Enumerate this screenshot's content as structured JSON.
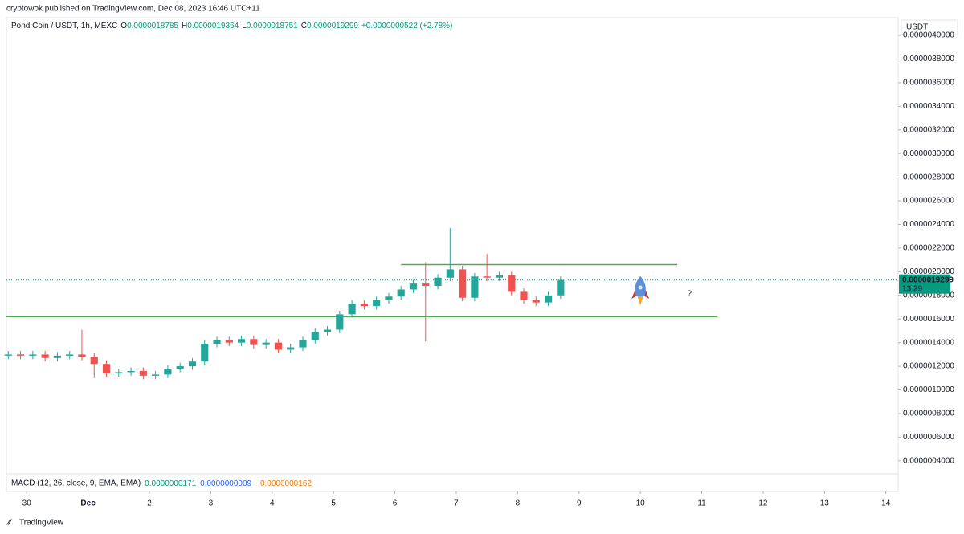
{
  "header": {
    "publisher": "cryptowok published on TradingView.com, Dec 08, 2023 16:46 UTC+11",
    "symbol": "Pond Coin / USDT, 1h, MEXC",
    "ohlc": [
      {
        "key": "O",
        "value": "0.0000018785"
      },
      {
        "key": "H",
        "value": "0.0000019364"
      },
      {
        "key": "L",
        "value": "0.0000018751"
      },
      {
        "key": "C",
        "value": "0.0000019299"
      }
    ],
    "change": "+0.0000000522 (+2.78%)",
    "currency": "USDT"
  },
  "macd": {
    "label": "MACD (12, 26, close, 9, EMA, EMA)",
    "values": [
      {
        "text": "0.0000000171",
        "color": "#089981"
      },
      {
        "text": "0.0000000009",
        "color": "#2962ff"
      },
      {
        "text": "−0.0000000162",
        "color": "#f57c00"
      }
    ]
  },
  "footer": {
    "brand": "TradingView"
  },
  "chart_data": {
    "type": "candlestick",
    "up_color": "#26a69a",
    "down_color": "#ef5350",
    "x": [
      -0.3,
      -0.1,
      0.1,
      0.3,
      0.5,
      0.7,
      0.9,
      1.1,
      1.3,
      1.5,
      1.7,
      1.9,
      2.1,
      2.3,
      2.5,
      2.7,
      2.9,
      3.1,
      3.3,
      3.5,
      3.7,
      3.9,
      4.1,
      4.3,
      4.5,
      4.7,
      4.9,
      5.1,
      5.3,
      5.5,
      5.7,
      5.9,
      6.1,
      6.3,
      6.5,
      6.7,
      6.9,
      7.1,
      7.3,
      7.5,
      7.7,
      7.9,
      8.1,
      8.3,
      8.5,
      8.7
    ],
    "open": [
      1.29e-06,
      1.3e-06,
      1.29e-06,
      1.3e-06,
      1.27e-06,
      1.29e-06,
      1.3e-06,
      1.28e-06,
      1.22e-06,
      1.14e-06,
      1.15e-06,
      1.16e-06,
      1.12e-06,
      1.13e-06,
      1.18e-06,
      1.2e-06,
      1.24e-06,
      1.39e-06,
      1.42e-06,
      1.4e-06,
      1.43e-06,
      1.38e-06,
      1.4e-06,
      1.34e-06,
      1.36e-06,
      1.42e-06,
      1.49e-06,
      1.51e-06,
      1.64e-06,
      1.73e-06,
      1.71e-06,
      1.76e-06,
      1.79e-06,
      1.85e-06,
      1.9e-06,
      1.88e-06,
      1.95e-06,
      2.02e-06,
      1.78e-06,
      1.96e-06,
      1.95e-06,
      1.97e-06,
      1.83e-06,
      1.76e-06,
      1.74e-06,
      1.8e-06
    ],
    "high": [
      1.33e-06,
      1.33e-06,
      1.33e-06,
      1.33e-06,
      1.32e-06,
      1.33e-06,
      1.51e-06,
      1.31e-06,
      1.25e-06,
      1.18e-06,
      1.19e-06,
      1.19e-06,
      1.16e-06,
      1.21e-06,
      1.23e-06,
      1.27e-06,
      1.42e-06,
      1.45e-06,
      1.45e-06,
      1.46e-06,
      1.46e-06,
      1.43e-06,
      1.43e-06,
      1.39e-06,
      1.45e-06,
      1.52e-06,
      1.54e-06,
      1.67e-06,
      1.76e-06,
      1.76e-06,
      1.79e-06,
      1.82e-06,
      1.88e-06,
      1.93e-06,
      2.08e-06,
      1.98e-06,
      2.37e-06,
      2.05e-06,
      1.99e-06,
      2.15e-06,
      2e-06,
      2e-06,
      1.86e-06,
      1.79e-06,
      1.83e-06,
      1.96e-06
    ],
    "low": [
      1.26e-06,
      1.26e-06,
      1.26e-06,
      1.24e-06,
      1.24e-06,
      1.26e-06,
      1.25e-06,
      1.1e-06,
      1.11e-06,
      1.11e-06,
      1.12e-06,
      1.09e-06,
      1.09e-06,
      1.1e-06,
      1.15e-06,
      1.17e-06,
      1.21e-06,
      1.36e-06,
      1.37e-06,
      1.37e-06,
      1.35e-06,
      1.35e-06,
      1.31e-06,
      1.31e-06,
      1.33e-06,
      1.39e-06,
      1.46e-06,
      1.48e-06,
      1.61e-06,
      1.68e-06,
      1.68e-06,
      1.73e-06,
      1.76e-06,
      1.82e-06,
      1.41e-06,
      1.85e-06,
      1.92e-06,
      1.75e-06,
      1.75e-06,
      1.92e-06,
      1.92e-06,
      1.8e-06,
      1.73e-06,
      1.71e-06,
      1.71e-06,
      1.77e-06
    ],
    "close": [
      1.3e-06,
      1.29e-06,
      1.3e-06,
      1.27e-06,
      1.29e-06,
      1.3e-06,
      1.28e-06,
      1.22e-06,
      1.14e-06,
      1.15e-06,
      1.16e-06,
      1.12e-06,
      1.13e-06,
      1.18e-06,
      1.2e-06,
      1.24e-06,
      1.39e-06,
      1.42e-06,
      1.4e-06,
      1.43e-06,
      1.38e-06,
      1.4e-06,
      1.34e-06,
      1.36e-06,
      1.42e-06,
      1.49e-06,
      1.51e-06,
      1.64e-06,
      1.73e-06,
      1.71e-06,
      1.76e-06,
      1.79e-06,
      1.85e-06,
      1.9e-06,
      1.88e-06,
      1.95e-06,
      2.02e-06,
      1.78e-06,
      1.96e-06,
      1.95e-06,
      1.97e-06,
      1.83e-06,
      1.76e-06,
      1.74e-06,
      1.8e-06,
      1.93e-06
    ],
    "levels": [
      {
        "value": 2.06e-06,
        "from": 6.1,
        "to": 10.6,
        "color": "#4caf50"
      },
      {
        "value": 1.62e-06,
        "from": -0.33,
        "to": 11.26,
        "color": "#4caf50"
      }
    ],
    "last_price": {
      "value": 1.9299e-06,
      "label": "0.0000019299",
      "countdown": "13:29",
      "color": "#089981"
    },
    "annotation": "?",
    "xlim": [
      -0.33,
      14.2
    ],
    "xticks": [
      {
        "value": 0,
        "label": "30"
      },
      {
        "value": 1,
        "label": "Dec"
      },
      2,
      3,
      4,
      5,
      6,
      7,
      8,
      9,
      10,
      11,
      12,
      13,
      14
    ],
    "ylim": [
      2.9e-07,
      4.15e-06
    ],
    "yticks": [
      {
        "value": 4e-07,
        "label": "0.0000004000"
      },
      {
        "value": 6e-07,
        "label": "0.0000006000"
      },
      {
        "value": 8e-07,
        "label": "0.0000008000"
      },
      {
        "value": 1e-06,
        "label": "0.0000010000"
      },
      {
        "value": 1.2e-06,
        "label": "0.0000012000"
      },
      {
        "value": 1.4e-06,
        "label": "0.0000014000"
      },
      {
        "value": 1.6e-06,
        "label": "0.0000016000"
      },
      {
        "value": 1.8e-06,
        "label": "0.0000018000"
      },
      {
        "value": 2e-06,
        "label": "0.0000020000"
      },
      {
        "value": 2.2e-06,
        "label": "0.0000022000"
      },
      {
        "value": 2.4e-06,
        "label": "0.0000024000"
      },
      {
        "value": 2.6e-06,
        "label": "0.0000026000"
      },
      {
        "value": 2.8e-06,
        "label": "0.0000028000"
      },
      {
        "value": 3e-06,
        "label": "0.0000030000"
      },
      {
        "value": 3.2e-06,
        "label": "0.0000032000"
      },
      {
        "value": 3.4e-06,
        "label": "0.0000034000"
      },
      {
        "value": 3.6e-06,
        "label": "0.0000036000"
      },
      {
        "value": 3.8e-06,
        "label": "0.0000038000"
      },
      {
        "value": 4e-06,
        "label": "0.0000040000"
      }
    ]
  }
}
